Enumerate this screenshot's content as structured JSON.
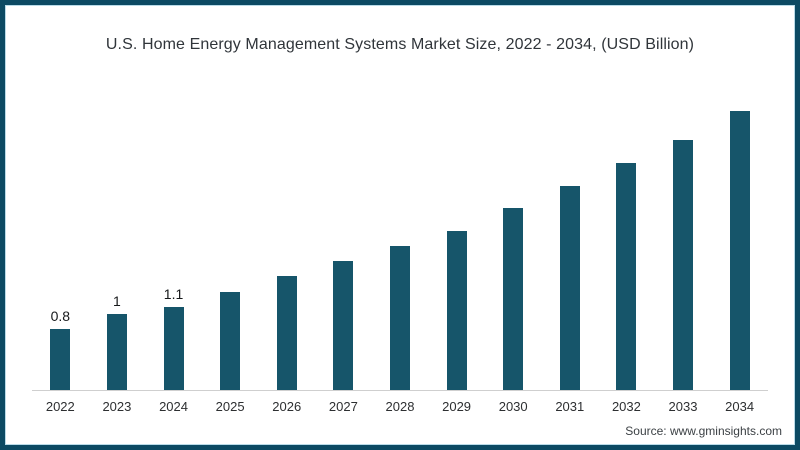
{
  "chart_data": {
    "type": "bar",
    "title": "U.S. Home Energy Management Systems Market Size, 2022 - 2034, (USD Billion)",
    "categories": [
      "2022",
      "2023",
      "2024",
      "2025",
      "2026",
      "2027",
      "2028",
      "2029",
      "2030",
      "2031",
      "2032",
      "2033",
      "2034"
    ],
    "values": [
      0.8,
      1.0,
      1.1,
      1.3,
      1.5,
      1.7,
      1.9,
      2.1,
      2.4,
      2.7,
      3.0,
      3.3,
      3.7
    ],
    "data_labels": [
      "0.8",
      "1",
      "1.1",
      "",
      "",
      "",
      "",
      "",
      "",
      "",
      "",
      "",
      ""
    ],
    "xlabel": "",
    "ylabel": "",
    "ylim": [
      0,
      3.7
    ],
    "grid": false,
    "legend": false,
    "bar_color": "#16556a"
  },
  "page": {
    "source": "Source: www.gminsights.com",
    "frame_border_color": "#0c4a63",
    "inner_line_color": "#b9dbe8",
    "axis_line_color": "#cfcfcf"
  }
}
